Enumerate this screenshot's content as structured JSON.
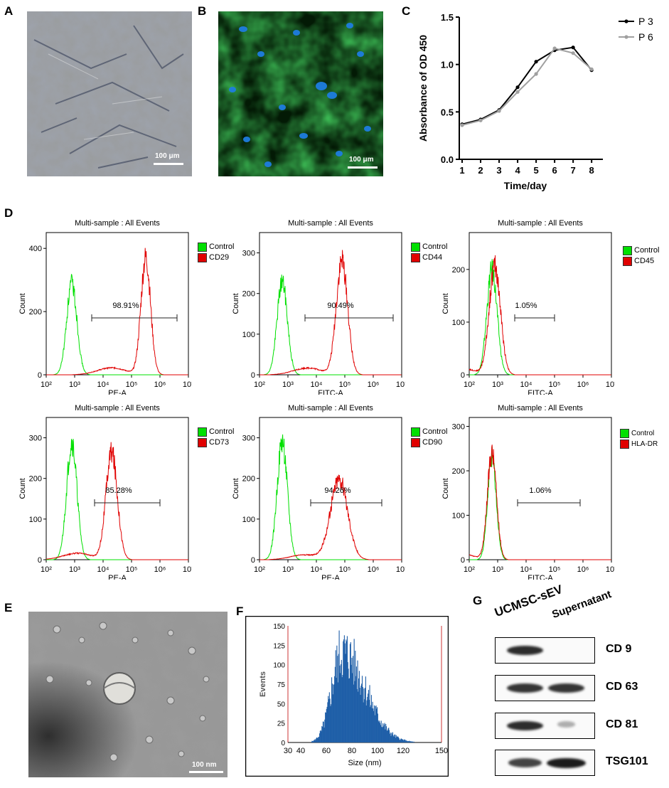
{
  "panels": {
    "A": "A",
    "B": "B",
    "C": "C",
    "D": "D",
    "E": "E",
    "F": "F",
    "G": "G"
  },
  "panel_a": {
    "scale_label": "100 μm"
  },
  "panel_b": {
    "scale_label": "100 μm"
  },
  "panel_e": {
    "scale_label": "100 nm"
  },
  "colors": {
    "control": "#00e000",
    "marker": "#e00000",
    "p3": "#000000",
    "p6": "#a0a0a0",
    "nta_bar": "#1f5fa8"
  },
  "chart_data": [
    {
      "id": "C",
      "type": "line",
      "xlabel": "Time/day",
      "ylabel": "Absorbance of OD 450",
      "x": [
        1,
        2,
        3,
        4,
        5,
        6,
        7,
        8
      ],
      "xlim": [
        1,
        8
      ],
      "ylim": [
        0,
        1.5
      ],
      "yticks": [
        "0.0",
        "0.5",
        "1.0",
        "1.5"
      ],
      "xticks": [
        "1",
        "2",
        "3",
        "4",
        "5",
        "6",
        "7",
        "8"
      ],
      "legend_position": "top-right",
      "series": [
        {
          "name": "P 3",
          "values": [
            0.37,
            0.42,
            0.52,
            0.76,
            1.03,
            1.15,
            1.18,
            0.94
          ]
        },
        {
          "name": "P 6",
          "values": [
            0.36,
            0.41,
            0.51,
            0.71,
            0.9,
            1.17,
            1.12,
            0.95
          ]
        }
      ]
    },
    {
      "id": "D1",
      "type": "histogram",
      "title": "Multi-sample : All Events",
      "xlabel": "PE-A",
      "ylabel": "Count",
      "ymax": 450,
      "yticks": [
        "0",
        "200",
        "400"
      ],
      "legend": [
        "Control",
        "CD29"
      ],
      "percent": "98.91%",
      "gate": [
        3.6,
        6.6
      ],
      "control_peak": [
        2.9,
        290,
        0.18
      ],
      "marker_peak": [
        5.5,
        370,
        0.17
      ]
    },
    {
      "id": "D2",
      "type": "histogram",
      "title": "Multi-sample : All Events",
      "xlabel": "FITC-A",
      "ylabel": "Count",
      "ymax": 350,
      "yticks": [
        "0",
        "100",
        "200",
        "300"
      ],
      "legend": [
        "Control",
        "CD44"
      ],
      "percent": "90.49%",
      "gate": [
        3.6,
        6.7
      ],
      "control_peak": [
        2.8,
        230,
        0.18
      ],
      "marker_peak": [
        4.9,
        280,
        0.2
      ]
    },
    {
      "id": "D3",
      "type": "histogram",
      "title": "Multi-sample : All Events",
      "xlabel": "FITC-A",
      "ylabel": "Count",
      "ymax": 270,
      "yticks": [
        "0",
        "100",
        "200"
      ],
      "legend": [
        "Control",
        "CD45"
      ],
      "percent": "1.05%",
      "gate": [
        3.6,
        5.0
      ],
      "control_peak": [
        2.8,
        200,
        0.18
      ],
      "marker_peak": [
        2.9,
        205,
        0.2
      ]
    },
    {
      "id": "D4",
      "type": "histogram",
      "title": "Multi-sample : All Events",
      "xlabel": "PE-A",
      "ylabel": "Count",
      "ymax": 350,
      "yticks": [
        "0",
        "100",
        "200",
        "300"
      ],
      "legend": [
        "Control",
        "CD73"
      ],
      "percent": "85.28%",
      "gate": [
        3.7,
        6.0
      ],
      "control_peak": [
        2.9,
        290,
        0.18
      ],
      "marker_peak": [
        4.3,
        265,
        0.2
      ]
    },
    {
      "id": "D5",
      "type": "histogram",
      "title": "Multi-sample : All Events",
      "xlabel": "PE-A",
      "ylabel": "Count",
      "ymax": 350,
      "yticks": [
        "0",
        "100",
        "200",
        "300"
      ],
      "legend": [
        "Control",
        "CD90"
      ],
      "percent": "94.26%",
      "gate": [
        3.8,
        6.3
      ],
      "control_peak": [
        2.8,
        290,
        0.18
      ],
      "marker_peak": [
        4.8,
        200,
        0.3
      ]
    },
    {
      "id": "D6",
      "type": "histogram",
      "title": "Multi-sample : All Events",
      "xlabel": "FITC-A",
      "ylabel": "Count",
      "ymax": 320,
      "yticks": [
        "0",
        "100",
        "200",
        "300"
      ],
      "legend": [
        "Control",
        "HLA-DR"
      ],
      "percent": "1.06%",
      "gate": [
        3.7,
        5.9
      ],
      "control_peak": [
        2.8,
        230,
        0.15
      ],
      "marker_peak": [
        2.8,
        240,
        0.16
      ]
    },
    {
      "id": "F",
      "type": "histogram",
      "xlabel": "Size (nm)",
      "ylabel": "Events",
      "xlim": [
        30,
        150
      ],
      "ylim": [
        0,
        150
      ],
      "xticks": [
        "30",
        "40",
        "60",
        "80",
        "100",
        "120",
        "150"
      ],
      "yticks": [
        "0",
        "25",
        "50",
        "75",
        "100",
        "125",
        "150"
      ],
      "peak_nm": 72,
      "peak_events": 140
    }
  ],
  "hist_axis": {
    "xticks": [
      "10²",
      "10³",
      "10⁴",
      "10⁵",
      "10⁶",
      "10⁷"
    ]
  },
  "panel_g": {
    "columns": [
      "UCMSC-sEV",
      "Supernatant"
    ],
    "rows": [
      {
        "label": "CD 9",
        "left": 0.9,
        "right": 0.0
      },
      {
        "label": "CD 63",
        "left": 0.85,
        "right": 0.85
      },
      {
        "label": "CD 81",
        "left": 0.9,
        "right": 0.1
      },
      {
        "label": "TSG101",
        "left": 0.75,
        "right": 1.0
      }
    ]
  }
}
